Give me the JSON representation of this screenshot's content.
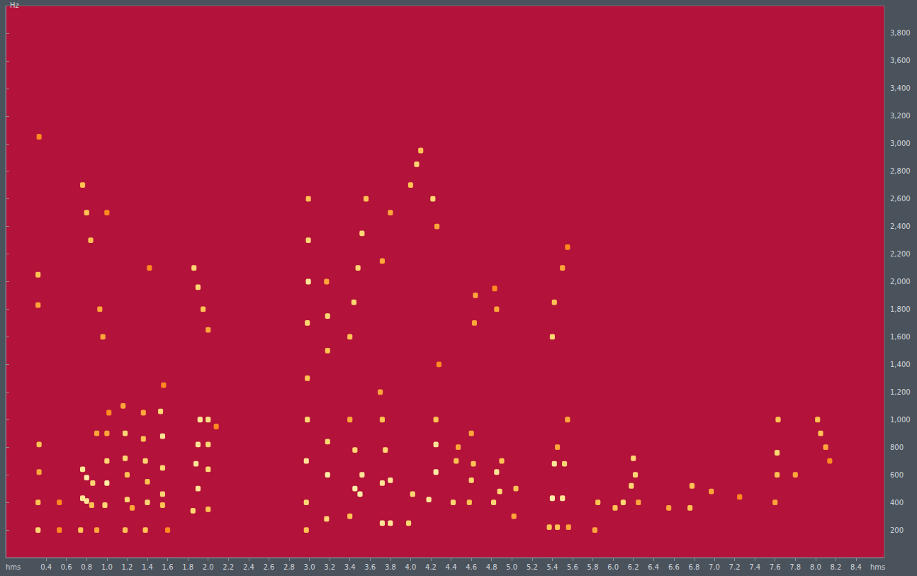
{
  "chart_data": {
    "type": "heatmap",
    "x_unit": "hms",
    "y_unit": "Hz",
    "xlim": [
      0,
      8.68
    ],
    "xticks": [
      0.4,
      0.6,
      0.8,
      1.0,
      1.2,
      1.4,
      1.6,
      1.8,
      2.0,
      2.2,
      2.4,
      2.6,
      2.8,
      3.0,
      3.2,
      3.4,
      3.6,
      3.8,
      4.0,
      4.2,
      4.4,
      4.6,
      4.8,
      5.0,
      5.2,
      5.4,
      5.6,
      5.8,
      6.0,
      6.2,
      6.4,
      6.6,
      6.8,
      7.0,
      7.2,
      7.4,
      7.6,
      7.8,
      8.0,
      8.2,
      8.4
    ],
    "ylim": [
      0,
      4000
    ],
    "yticks": [
      200,
      400,
      600,
      800,
      1000,
      1200,
      1400,
      1600,
      1800,
      2000,
      2200,
      2400,
      2600,
      2800,
      3000,
      3200,
      3400,
      3600,
      3800
    ],
    "clim": [
      0,
      1
    ],
    "cells": [
      [
        0.32,
        200,
        0.8
      ],
      [
        0.32,
        400,
        0.7
      ],
      [
        0.33,
        620,
        0.6
      ],
      [
        0.33,
        820,
        0.7
      ],
      [
        0.32,
        1830,
        0.6
      ],
      [
        0.32,
        2050,
        0.7
      ],
      [
        0.33,
        3050,
        0.5
      ],
      [
        0.53,
        200,
        0.5
      ],
      [
        0.53,
        400,
        0.5
      ],
      [
        0.74,
        200,
        0.7
      ],
      [
        0.76,
        430,
        0.9
      ],
      [
        0.8,
        410,
        0.9
      ],
      [
        0.85,
        380,
        0.7
      ],
      [
        0.76,
        640,
        0.9
      ],
      [
        0.8,
        580,
        0.95
      ],
      [
        0.86,
        540,
        0.8
      ],
      [
        0.9,
        900,
        0.6
      ],
      [
        0.76,
        2700,
        0.7
      ],
      [
        0.8,
        2500,
        0.7
      ],
      [
        0.84,
        2300,
        0.7
      ],
      [
        0.93,
        1800,
        0.6
      ],
      [
        0.96,
        1600,
        0.6
      ],
      [
        0.9,
        200,
        0.6
      ],
      [
        0.98,
        380,
        0.8
      ],
      [
        1.0,
        540,
        0.95
      ],
      [
        1.0,
        700,
        0.8
      ],
      [
        1.0,
        900,
        0.6
      ],
      [
        1.02,
        1050,
        0.5
      ],
      [
        1.0,
        2500,
        0.5
      ],
      [
        1.18,
        200,
        0.7
      ],
      [
        1.2,
        420,
        0.8
      ],
      [
        1.2,
        600,
        0.7
      ],
      [
        1.18,
        720,
        0.8
      ],
      [
        1.18,
        900,
        0.8
      ],
      [
        1.16,
        1100,
        0.6
      ],
      [
        1.25,
        360,
        0.6
      ],
      [
        1.38,
        200,
        0.7
      ],
      [
        1.4,
        400,
        0.8
      ],
      [
        1.4,
        550,
        0.7
      ],
      [
        1.38,
        700,
        0.8
      ],
      [
        1.36,
        860,
        0.7
      ],
      [
        1.36,
        1050,
        0.6
      ],
      [
        1.42,
        2100,
        0.5
      ],
      [
        1.55,
        380,
        0.7
      ],
      [
        1.55,
        460,
        0.8
      ],
      [
        1.55,
        650,
        0.8
      ],
      [
        1.55,
        880,
        0.9
      ],
      [
        1.53,
        1060,
        0.8
      ],
      [
        1.56,
        1250,
        0.5
      ],
      [
        1.6,
        200,
        0.5
      ],
      [
        1.85,
        340,
        0.8
      ],
      [
        1.9,
        500,
        0.9
      ],
      [
        1.88,
        680,
        0.9
      ],
      [
        1.9,
        820,
        0.9
      ],
      [
        1.92,
        1000,
        0.9
      ],
      [
        2.0,
        1000,
        0.85
      ],
      [
        2.0,
        820,
        0.8
      ],
      [
        2.0,
        640,
        0.8
      ],
      [
        1.86,
        2100,
        0.8
      ],
      [
        1.9,
        1960,
        0.8
      ],
      [
        1.95,
        1800,
        0.7
      ],
      [
        2.0,
        1650,
        0.6
      ],
      [
        2.0,
        350,
        0.7
      ],
      [
        2.08,
        950,
        0.5
      ],
      [
        2.97,
        200,
        0.7
      ],
      [
        2.97,
        400,
        0.8
      ],
      [
        2.97,
        700,
        0.9
      ],
      [
        2.98,
        1000,
        0.8
      ],
      [
        2.98,
        1300,
        0.7
      ],
      [
        2.98,
        1700,
        0.8
      ],
      [
        2.99,
        2000,
        0.9
      ],
      [
        2.99,
        2300,
        0.8
      ],
      [
        2.99,
        2600,
        0.7
      ],
      [
        3.17,
        280,
        0.8
      ],
      [
        3.18,
        600,
        0.95
      ],
      [
        3.18,
        840,
        0.8
      ],
      [
        3.18,
        1500,
        0.7
      ],
      [
        3.18,
        1750,
        0.8
      ],
      [
        3.17,
        2000,
        0.6
      ],
      [
        3.4,
        300,
        0.7
      ],
      [
        3.45,
        500,
        0.95
      ],
      [
        3.5,
        460,
        0.95
      ],
      [
        3.52,
        600,
        0.9
      ],
      [
        3.45,
        780,
        0.8
      ],
      [
        3.4,
        1000,
        0.6
      ],
      [
        3.4,
        1600,
        0.7
      ],
      [
        3.44,
        1850,
        0.8
      ],
      [
        3.48,
        2100,
        0.8
      ],
      [
        3.52,
        2350,
        0.8
      ],
      [
        3.56,
        2600,
        0.7
      ],
      [
        3.72,
        250,
        0.9
      ],
      [
        3.8,
        250,
        0.9
      ],
      [
        3.72,
        540,
        0.9
      ],
      [
        3.8,
        560,
        0.9
      ],
      [
        3.75,
        780,
        0.8
      ],
      [
        3.72,
        1000,
        0.7
      ],
      [
        3.7,
        1200,
        0.6
      ],
      [
        3.8,
        2500,
        0.6
      ],
      [
        3.72,
        2150,
        0.6
      ],
      [
        3.98,
        250,
        0.8
      ],
      [
        4.02,
        460,
        0.8
      ],
      [
        4.0,
        2700,
        0.7
      ],
      [
        4.06,
        2850,
        0.8
      ],
      [
        4.1,
        2950,
        0.7
      ],
      [
        4.18,
        420,
        0.9
      ],
      [
        4.25,
        620,
        0.95
      ],
      [
        4.25,
        820,
        0.9
      ],
      [
        4.25,
        1000,
        0.7
      ],
      [
        4.22,
        2600,
        0.8
      ],
      [
        4.26,
        2400,
        0.6
      ],
      [
        4.28,
        1400,
        0.5
      ],
      [
        4.42,
        400,
        0.8
      ],
      [
        4.45,
        700,
        0.7
      ],
      [
        4.47,
        800,
        0.6
      ],
      [
        4.58,
        400,
        0.7
      ],
      [
        4.6,
        560,
        0.8
      ],
      [
        4.62,
        680,
        0.7
      ],
      [
        4.6,
        900,
        0.6
      ],
      [
        4.63,
        1700,
        0.6
      ],
      [
        4.64,
        1900,
        0.6
      ],
      [
        4.82,
        400,
        0.8
      ],
      [
        4.88,
        480,
        0.8
      ],
      [
        4.85,
        620,
        0.9
      ],
      [
        4.9,
        700,
        0.7
      ],
      [
        4.85,
        1800,
        0.6
      ],
      [
        4.83,
        1950,
        0.5
      ],
      [
        5.02,
        300,
        0.6
      ],
      [
        5.04,
        500,
        0.7
      ],
      [
        5.37,
        220,
        0.7
      ],
      [
        5.45,
        220,
        0.7
      ],
      [
        5.4,
        430,
        0.95
      ],
      [
        5.5,
        430,
        0.9
      ],
      [
        5.42,
        680,
        0.9
      ],
      [
        5.52,
        680,
        0.8
      ],
      [
        5.45,
        800,
        0.6
      ],
      [
        5.55,
        1000,
        0.6
      ],
      [
        5.4,
        1600,
        0.8
      ],
      [
        5.42,
        1850,
        0.7
      ],
      [
        5.5,
        2100,
        0.6
      ],
      [
        5.55,
        2250,
        0.5
      ],
      [
        5.56,
        220,
        0.6
      ],
      [
        5.82,
        200,
        0.6
      ],
      [
        5.85,
        400,
        0.7
      ],
      [
        6.02,
        360,
        0.7
      ],
      [
        6.1,
        400,
        0.8
      ],
      [
        6.18,
        520,
        0.8
      ],
      [
        6.22,
        600,
        0.8
      ],
      [
        6.2,
        720,
        0.8
      ],
      [
        6.25,
        400,
        0.6
      ],
      [
        6.55,
        360,
        0.6
      ],
      [
        6.76,
        360,
        0.7
      ],
      [
        6.78,
        520,
        0.7
      ],
      [
        6.97,
        480,
        0.6
      ],
      [
        7.25,
        440,
        0.5
      ],
      [
        7.6,
        400,
        0.6
      ],
      [
        7.62,
        600,
        0.7
      ],
      [
        7.62,
        760,
        0.8
      ],
      [
        7.63,
        1000,
        0.7
      ],
      [
        7.8,
        600,
        0.6
      ],
      [
        8.02,
        1000,
        0.7
      ],
      [
        8.05,
        900,
        0.7
      ],
      [
        8.1,
        800,
        0.6
      ],
      [
        8.14,
        700,
        0.5
      ]
    ]
  }
}
